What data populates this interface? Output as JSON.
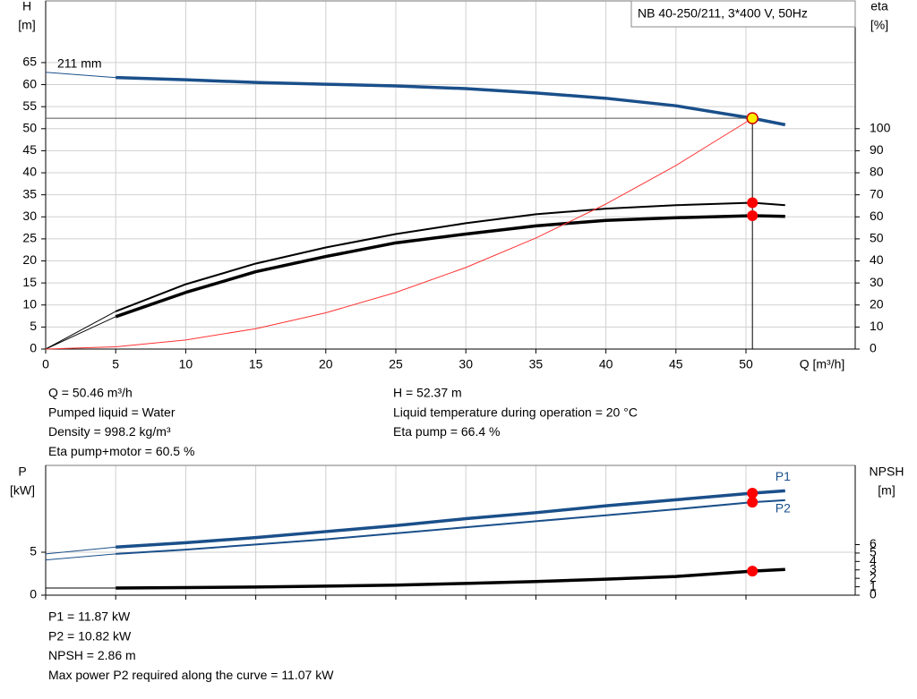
{
  "chart_data": [
    {
      "type": "line",
      "legend_box": "NB 40-250/211, 3*400 V, 50Hz",
      "annotation": "211 mm",
      "ylabel": [
        "H",
        "[m]"
      ],
      "y2label": [
        "eta",
        "[%]"
      ],
      "xlabel": "Q [m³/h]",
      "xlim": [
        0,
        57.8
      ],
      "xticks": [
        0,
        5,
        10,
        15,
        20,
        25,
        30,
        35,
        40,
        45,
        50
      ],
      "ylim": [
        0,
        79
      ],
      "yticks": [
        0,
        5,
        10,
        15,
        20,
        25,
        30,
        35,
        40,
        45,
        50,
        55,
        60,
        65
      ],
      "y2lim": [
        0,
        158
      ],
      "y2ticks": [
        0,
        10,
        20,
        30,
        40,
        50,
        60,
        70,
        80,
        90,
        100
      ],
      "grid": true,
      "curve_start": 5,
      "series": [
        {
          "color": "#1a4f8a",
          "line": "thick",
          "x": [
            0,
            5,
            10,
            15,
            20,
            25,
            30,
            35,
            40,
            45,
            50.46,
            52.8
          ],
          "values": [
            62.8,
            61.6,
            61.1,
            60.5,
            60.1,
            59.7,
            59.1,
            58.1,
            56.9,
            55.2,
            52.37,
            50.9
          ]
        },
        {
          "color": "#000000",
          "line": "medium",
          "axis": "y2",
          "x": [
            0,
            5,
            10,
            15,
            20,
            25,
            30,
            35,
            40,
            45,
            50.46,
            52.8
          ],
          "values": [
            0,
            17.1,
            29.4,
            38.8,
            46.1,
            52.2,
            57.1,
            61.2,
            63.7,
            65.3,
            66.4,
            65.3
          ]
        },
        {
          "color": "#000000",
          "line": "thick",
          "axis": "y2",
          "x": [
            0,
            5,
            10,
            15,
            20,
            25,
            30,
            35,
            40,
            45,
            50.46,
            52.8
          ],
          "values": [
            0,
            14.7,
            25.7,
            35.1,
            42,
            48.2,
            52.2,
            55.9,
            58.4,
            59.6,
            60.5,
            60.2
          ]
        },
        {
          "color": "#ff3333",
          "line": "thin",
          "x": [
            0,
            5,
            10,
            15,
            20,
            25,
            30,
            35,
            40,
            45,
            50.46
          ],
          "values": [
            0,
            0.51,
            2.06,
            4.63,
            8.23,
            12.85,
            18.51,
            25.2,
            32.9,
            41.65,
            52.37
          ]
        }
      ],
      "markers": [
        {
          "x": 50.46,
          "y": 52.37,
          "color": "#ffee00",
          "guide": true
        },
        {
          "x": 50.46,
          "y": 66.4,
          "axis": "y2",
          "color": "#ff0000"
        },
        {
          "x": 50.46,
          "y": 60.5,
          "axis": "y2",
          "color": "#ff0000"
        }
      ],
      "info": [
        [
          "Q = 50.46 m³/h",
          "Pumped liquid = Water",
          "Density = 998.2 kg/m³",
          "Eta pump+motor = 60.5 %"
        ],
        [
          "H = 52.37 m",
          "Liquid temperature during operation = 20 °C",
          "Eta pump = 66.4 %"
        ]
      ]
    },
    {
      "type": "line",
      "ylabel": [
        "P",
        "[kW]"
      ],
      "y2label": [
        "NPSH",
        "[m]"
      ],
      "xlim": [
        0,
        57.8
      ],
      "ylim": [
        0,
        15.1
      ],
      "yticks": [
        0,
        5
      ],
      "y2lim": [
        0,
        15.4
      ],
      "y2ticks": [
        0,
        1,
        2,
        3,
        4,
        5,
        6
      ],
      "grid": true,
      "curve_start": 5,
      "series": [
        {
          "name": "P1",
          "color": "#1a4f8a",
          "line": "thick",
          "x": [
            0,
            5,
            10,
            15,
            20,
            25,
            30,
            35,
            40,
            45,
            50.46,
            52.8
          ],
          "values": [
            4.8,
            5.6,
            6.1,
            6.7,
            7.4,
            8.1,
            8.9,
            9.6,
            10.4,
            11.1,
            11.87,
            12.15
          ]
        },
        {
          "name": "P2",
          "color": "#1a4f8a",
          "line": "medium",
          "x": [
            0,
            5,
            10,
            15,
            20,
            25,
            30,
            35,
            40,
            45,
            50.46,
            52.8
          ],
          "values": [
            4.1,
            4.8,
            5.3,
            5.9,
            6.5,
            7.2,
            7.9,
            8.6,
            9.3,
            10.0,
            10.82,
            11.05
          ]
        },
        {
          "color": "#000000",
          "line": "thick",
          "axis": "y2",
          "x": [
            0,
            5,
            10,
            15,
            20,
            25,
            30,
            35,
            40,
            45,
            50.46,
            52.8
          ],
          "values": [
            0.85,
            0.85,
            0.9,
            0.97,
            1.07,
            1.2,
            1.4,
            1.62,
            1.9,
            2.22,
            2.86,
            3.05
          ]
        }
      ],
      "markers": [
        {
          "x": 50.46,
          "y": 11.87,
          "color": "#ff0000"
        },
        {
          "x": 50.46,
          "y": 10.82,
          "color": "#ff0000"
        },
        {
          "x": 50.46,
          "y": 2.86,
          "axis": "y2",
          "color": "#ff0000"
        }
      ],
      "info": [
        [
          "P1 = 11.87 kW",
          "P2 = 10.82 kW",
          "NPSH = 2.86 m",
          "Max power P2 required along the curve = 11.07 kW"
        ]
      ]
    }
  ]
}
